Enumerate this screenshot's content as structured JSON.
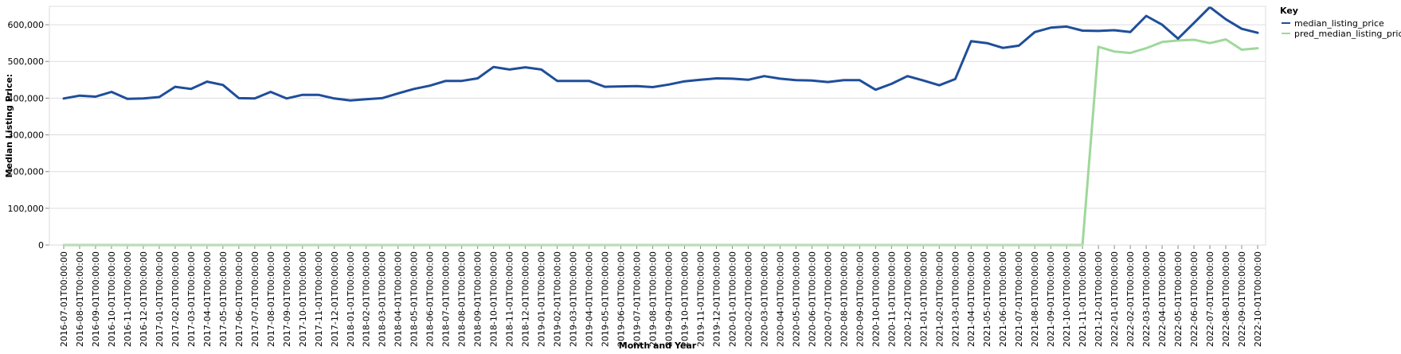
{
  "chart_data": {
    "type": "line",
    "xlabel": "Month and Year",
    "ylabel": "Median Listing Price:",
    "ylim": [
      0,
      650000
    ],
    "yticks": [
      0,
      100000,
      200000,
      300000,
      400000,
      500000,
      600000
    ],
    "ytick_labels": [
      "0",
      "100,000",
      "200,000",
      "300,000",
      "400,000",
      "500,000",
      "600,000"
    ],
    "grid": true,
    "legend": {
      "title": "Key",
      "placement": "top-right"
    },
    "categories": [
      "2016-07-01T00:00:00",
      "2016-08-01T00:00:00",
      "2016-09-01T00:00:00",
      "2016-10-01T00:00:00",
      "2016-11-01T00:00:00",
      "2016-12-01T00:00:00",
      "2017-01-01T00:00:00",
      "2017-02-01T00:00:00",
      "2017-03-01T00:00:00",
      "2017-04-01T00:00:00",
      "2017-05-01T00:00:00",
      "2017-06-01T00:00:00",
      "2017-07-01T00:00:00",
      "2017-08-01T00:00:00",
      "2017-09-01T00:00:00",
      "2017-10-01T00:00:00",
      "2017-11-01T00:00:00",
      "2017-12-01T00:00:00",
      "2018-01-01T00:00:00",
      "2018-02-01T00:00:00",
      "2018-03-01T00:00:00",
      "2018-04-01T00:00:00",
      "2018-05-01T00:00:00",
      "2018-06-01T00:00:00",
      "2018-07-01T00:00:00",
      "2018-08-01T00:00:00",
      "2018-09-01T00:00:00",
      "2018-10-01T00:00:00",
      "2018-11-01T00:00:00",
      "2018-12-01T00:00:00",
      "2019-01-01T00:00:00",
      "2019-02-01T00:00:00",
      "2019-03-01T00:00:00",
      "2019-04-01T00:00:00",
      "2019-05-01T00:00:00",
      "2019-06-01T00:00:00",
      "2019-07-01T00:00:00",
      "2019-08-01T00:00:00",
      "2019-09-01T00:00:00",
      "2019-10-01T00:00:00",
      "2019-11-01T00:00:00",
      "2019-12-01T00:00:00",
      "2020-01-01T00:00:00",
      "2020-02-01T00:00:00",
      "2020-03-01T00:00:00",
      "2020-04-01T00:00:00",
      "2020-05-01T00:00:00",
      "2020-06-01T00:00:00",
      "2020-07-01T00:00:00",
      "2020-08-01T00:00:00",
      "2020-09-01T00:00:00",
      "2020-10-01T00:00:00",
      "2020-11-01T00:00:00",
      "2020-12-01T00:00:00",
      "2021-01-01T00:00:00",
      "2021-02-01T00:00:00",
      "2021-03-01T00:00:00",
      "2021-04-01T00:00:00",
      "2021-05-01T00:00:00",
      "2021-06-01T00:00:00",
      "2021-07-01T00:00:00",
      "2021-08-01T00:00:00",
      "2021-09-01T00:00:00",
      "2021-10-01T00:00:00",
      "2021-11-01T00:00:00",
      "2021-12-01T00:00:00",
      "2022-01-01T00:00:00",
      "2022-02-01T00:00:00",
      "2022-03-01T00:00:00",
      "2022-04-01T00:00:00",
      "2022-05-01T00:00:00",
      "2022-06-01T00:00:00",
      "2022-07-01T00:00:00",
      "2022-08-01T00:00:00",
      "2022-09-01T00:00:00",
      "2022-10-01T00:00:00"
    ],
    "series": [
      {
        "name": "median_listing_price",
        "color": "#1f4e9a",
        "values": [
          399000,
          407000,
          404000,
          417000,
          398000,
          399000,
          403000,
          431000,
          425000,
          445000,
          436000,
          400000,
          399000,
          417000,
          399000,
          409000,
          409000,
          399000,
          394000,
          397000,
          400000,
          413000,
          425000,
          434000,
          447000,
          447000,
          454000,
          485000,
          478000,
          484000,
          478000,
          447000,
          447000,
          447000,
          431000,
          432000,
          433000,
          430000,
          437000,
          446000,
          450000,
          454000,
          453000,
          450000,
          460000,
          453000,
          449000,
          448000,
          444000,
          449000,
          449000,
          423000,
          439000,
          460000,
          448000,
          435000,
          452000,
          555000,
          550000,
          537000,
          543000,
          580000,
          592000,
          595000,
          584000,
          583000,
          585000,
          580000,
          624000,
          600000,
          562000,
          605000,
          648000,
          615000,
          589000,
          578000
        ]
      },
      {
        "name": "pred_median_listing_price",
        "color": "#9fd89a",
        "values": [
          0,
          0,
          0,
          0,
          0,
          0,
          0,
          0,
          0,
          0,
          0,
          0,
          0,
          0,
          0,
          0,
          0,
          0,
          0,
          0,
          0,
          0,
          0,
          0,
          0,
          0,
          0,
          0,
          0,
          0,
          0,
          0,
          0,
          0,
          0,
          0,
          0,
          0,
          0,
          0,
          0,
          0,
          0,
          0,
          0,
          0,
          0,
          0,
          0,
          0,
          0,
          0,
          0,
          0,
          0,
          0,
          0,
          0,
          0,
          0,
          0,
          0,
          0,
          0,
          0,
          540000,
          527000,
          523000,
          536000,
          553000,
          557000,
          559000,
          550000,
          560000,
          532000,
          536000
        ]
      }
    ]
  }
}
